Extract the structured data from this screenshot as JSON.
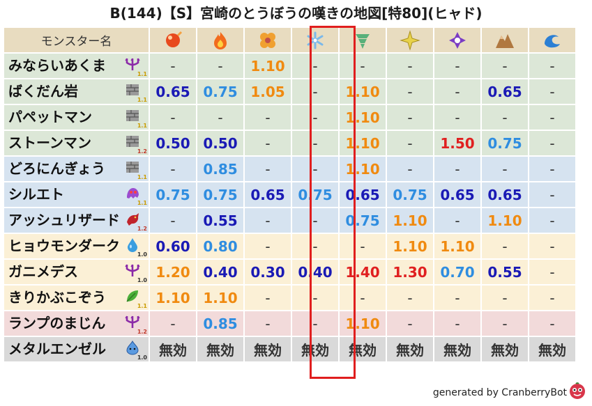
{
  "title": "B(144)【S】宮崎のとうぼうの嘆きの地図[特80](ヒャド)",
  "header": {
    "label": "モンスター名"
  },
  "elements": [
    {
      "icon": "fire-orb-icon",
      "color": "#e8491d"
    },
    {
      "icon": "flame-icon",
      "color": "#f26b1d"
    },
    {
      "icon": "explosion-clover-icon",
      "color": "#f0a030"
    },
    {
      "icon": "ice-snowflake-icon",
      "color": "#7ab8ea"
    },
    {
      "icon": "wind-tornado-icon",
      "color": "#58b07a"
    },
    {
      "icon": "lightning-burst-icon",
      "color": "#e8d24a"
    },
    {
      "icon": "dark-shuriken-icon",
      "color": "#7b3cc4"
    },
    {
      "icon": "earth-rock-icon",
      "color": "#b07840"
    },
    {
      "icon": "water-wave-icon",
      "color": "#2b7fd4"
    }
  ],
  "highlight_column": 3,
  "rows": [
    {
      "name": "みならいあくま",
      "icon": "trident-icon",
      "ver": "1.1",
      "bg": "#dce7d7",
      "values": [
        "-",
        "-",
        "1.10",
        "-",
        "-",
        "-",
        "-",
        "-",
        "-"
      ]
    },
    {
      "name": "ばくだん岩",
      "icon": "brick-wall-icon",
      "ver": "1.1",
      "bg": "#dce7d7",
      "values": [
        "0.65",
        "0.75",
        "1.05",
        "-",
        "1.10",
        "-",
        "-",
        "0.65",
        "-"
      ]
    },
    {
      "name": "パペットマン",
      "icon": "brick-wall-icon",
      "ver": "1.1",
      "bg": "#dce7d7",
      "values": [
        "-",
        "-",
        "-",
        "-",
        "1.10",
        "-",
        "-",
        "-",
        "-"
      ]
    },
    {
      "name": "ストーンマン",
      "icon": "brick-wall-icon",
      "ver": "1.2",
      "bg": "#dce7d7",
      "values": [
        "0.50",
        "0.50",
        "-",
        "-",
        "1.10",
        "-",
        "1.50",
        "0.75",
        "-"
      ]
    },
    {
      "name": "どろにんぎょう",
      "icon": "brick-wall-icon",
      "ver": "1.1",
      "bg": "#d6e3f0",
      "values": [
        "-",
        "0.85",
        "-",
        "-",
        "1.10",
        "-",
        "-",
        "-",
        "-"
      ]
    },
    {
      "name": "シルエト",
      "icon": "purple-ghost-icon",
      "ver": "1.1",
      "bg": "#d6e3f0",
      "values": [
        "0.75",
        "0.75",
        "0.65",
        "0.75",
        "0.65",
        "0.75",
        "0.65",
        "0.65",
        "-"
      ]
    },
    {
      "name": "アッシュリザード",
      "icon": "red-dragon-icon",
      "ver": "1.2",
      "bg": "#d6e3f0",
      "values": [
        "-",
        "0.55",
        "-",
        "-",
        "0.75",
        "1.10",
        "-",
        "1.10",
        "-"
      ]
    },
    {
      "name": "ヒョウモンダーク",
      "icon": "water-drop-icon",
      "ver": "1.0",
      "bg": "#fbf0d6",
      "values": [
        "0.60",
        "0.80",
        "-",
        "-",
        "-",
        "1.10",
        "1.10",
        "-",
        "-"
      ]
    },
    {
      "name": "ガニメデス",
      "icon": "trident-icon",
      "ver": "1.0",
      "bg": "#fbf0d6",
      "values": [
        "1.20",
        "0.40",
        "0.30",
        "0.40",
        "1.40",
        "1.30",
        "0.70",
        "0.55",
        "-"
      ]
    },
    {
      "name": "きりかぶこぞう",
      "icon": "leaf-icon",
      "ver": "1.1",
      "bg": "#fbf0d6",
      "values": [
        "1.10",
        "1.10",
        "-",
        "-",
        "-",
        "-",
        "-",
        "-",
        "-"
      ]
    },
    {
      "name": "ランプのまじん",
      "icon": "trident-icon",
      "ver": "1.2",
      "bg": "#f2dada",
      "values": [
        "-",
        "0.85",
        "-",
        "-",
        "1.10",
        "-",
        "-",
        "-",
        "-"
      ]
    },
    {
      "name": "メタルエンゼル",
      "icon": "metal-slime-icon",
      "ver": "1.0",
      "bg": "#d9d9d9",
      "values": [
        "無効",
        "無効",
        "無効",
        "無効",
        "無効",
        "無効",
        "無効",
        "無効",
        "無効"
      ]
    }
  ],
  "value_colors": {
    "strong_resist": "#1a1ab5",
    "resist": "#2f8de0",
    "weak": "#f08a10",
    "very_weak": "#e02020",
    "neutral": "#333333"
  },
  "footer": {
    "text": "generated by CranberryBot",
    "icon": "cranberry-bot-icon"
  }
}
